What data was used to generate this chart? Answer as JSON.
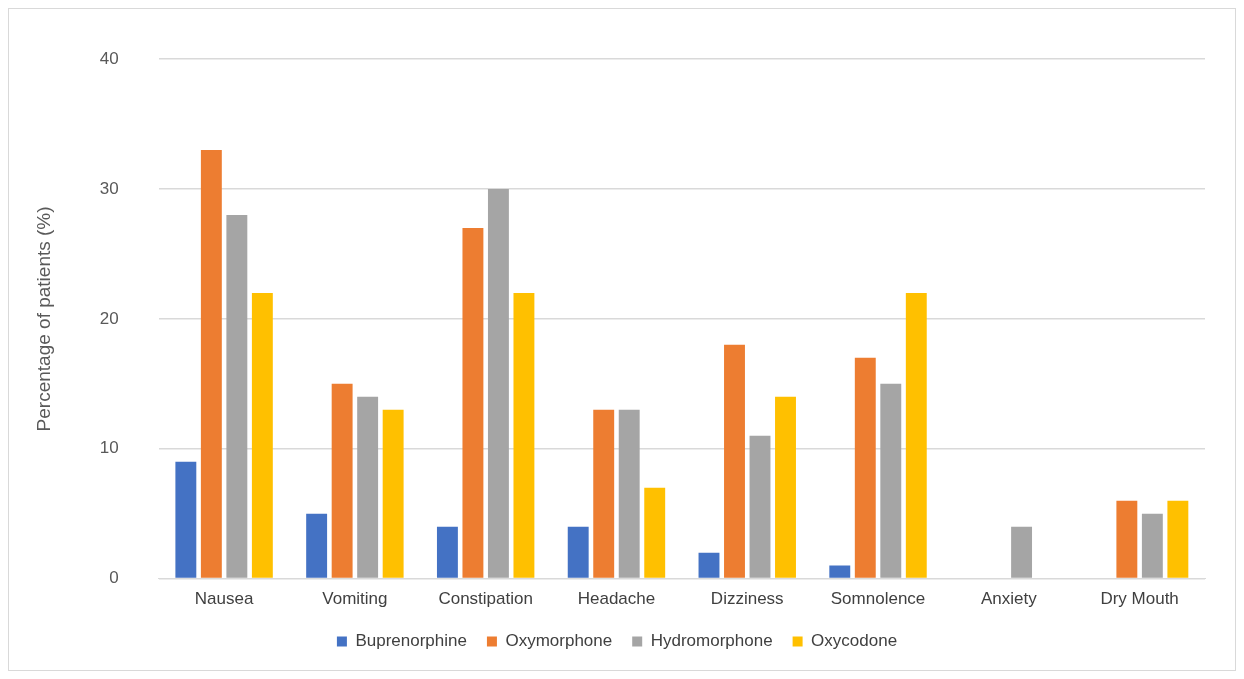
{
  "chart_data": {
    "type": "bar",
    "ylabel": "Percentage of patients (%)",
    "categories": [
      "Nausea",
      "Vomiting",
      "Constipation",
      "Headache",
      "Dizziness",
      "Somnolence",
      "Anxiety",
      "Dry Mouth"
    ],
    "series": [
      {
        "name": "Buprenorphine",
        "color": "#4472c4",
        "values": [
          9,
          5,
          4,
          4,
          2,
          1,
          null,
          null
        ]
      },
      {
        "name": "Oxymorphone",
        "color": "#ed7d31",
        "values": [
          33,
          15,
          27,
          13,
          18,
          17,
          null,
          6
        ]
      },
      {
        "name": "Hydromorphone",
        "color": "#a5a5a5",
        "values": [
          28,
          14,
          30,
          13,
          11,
          15,
          4,
          5
        ]
      },
      {
        "name": "Oxycodone",
        "color": "#ffc000",
        "values": [
          22,
          13,
          22,
          7,
          14,
          22,
          null,
          6
        ]
      }
    ],
    "ylim": [
      0,
      40
    ],
    "yticks": [
      0,
      10,
      20,
      30,
      40
    ],
    "grid": "y",
    "legend": "bottom"
  }
}
